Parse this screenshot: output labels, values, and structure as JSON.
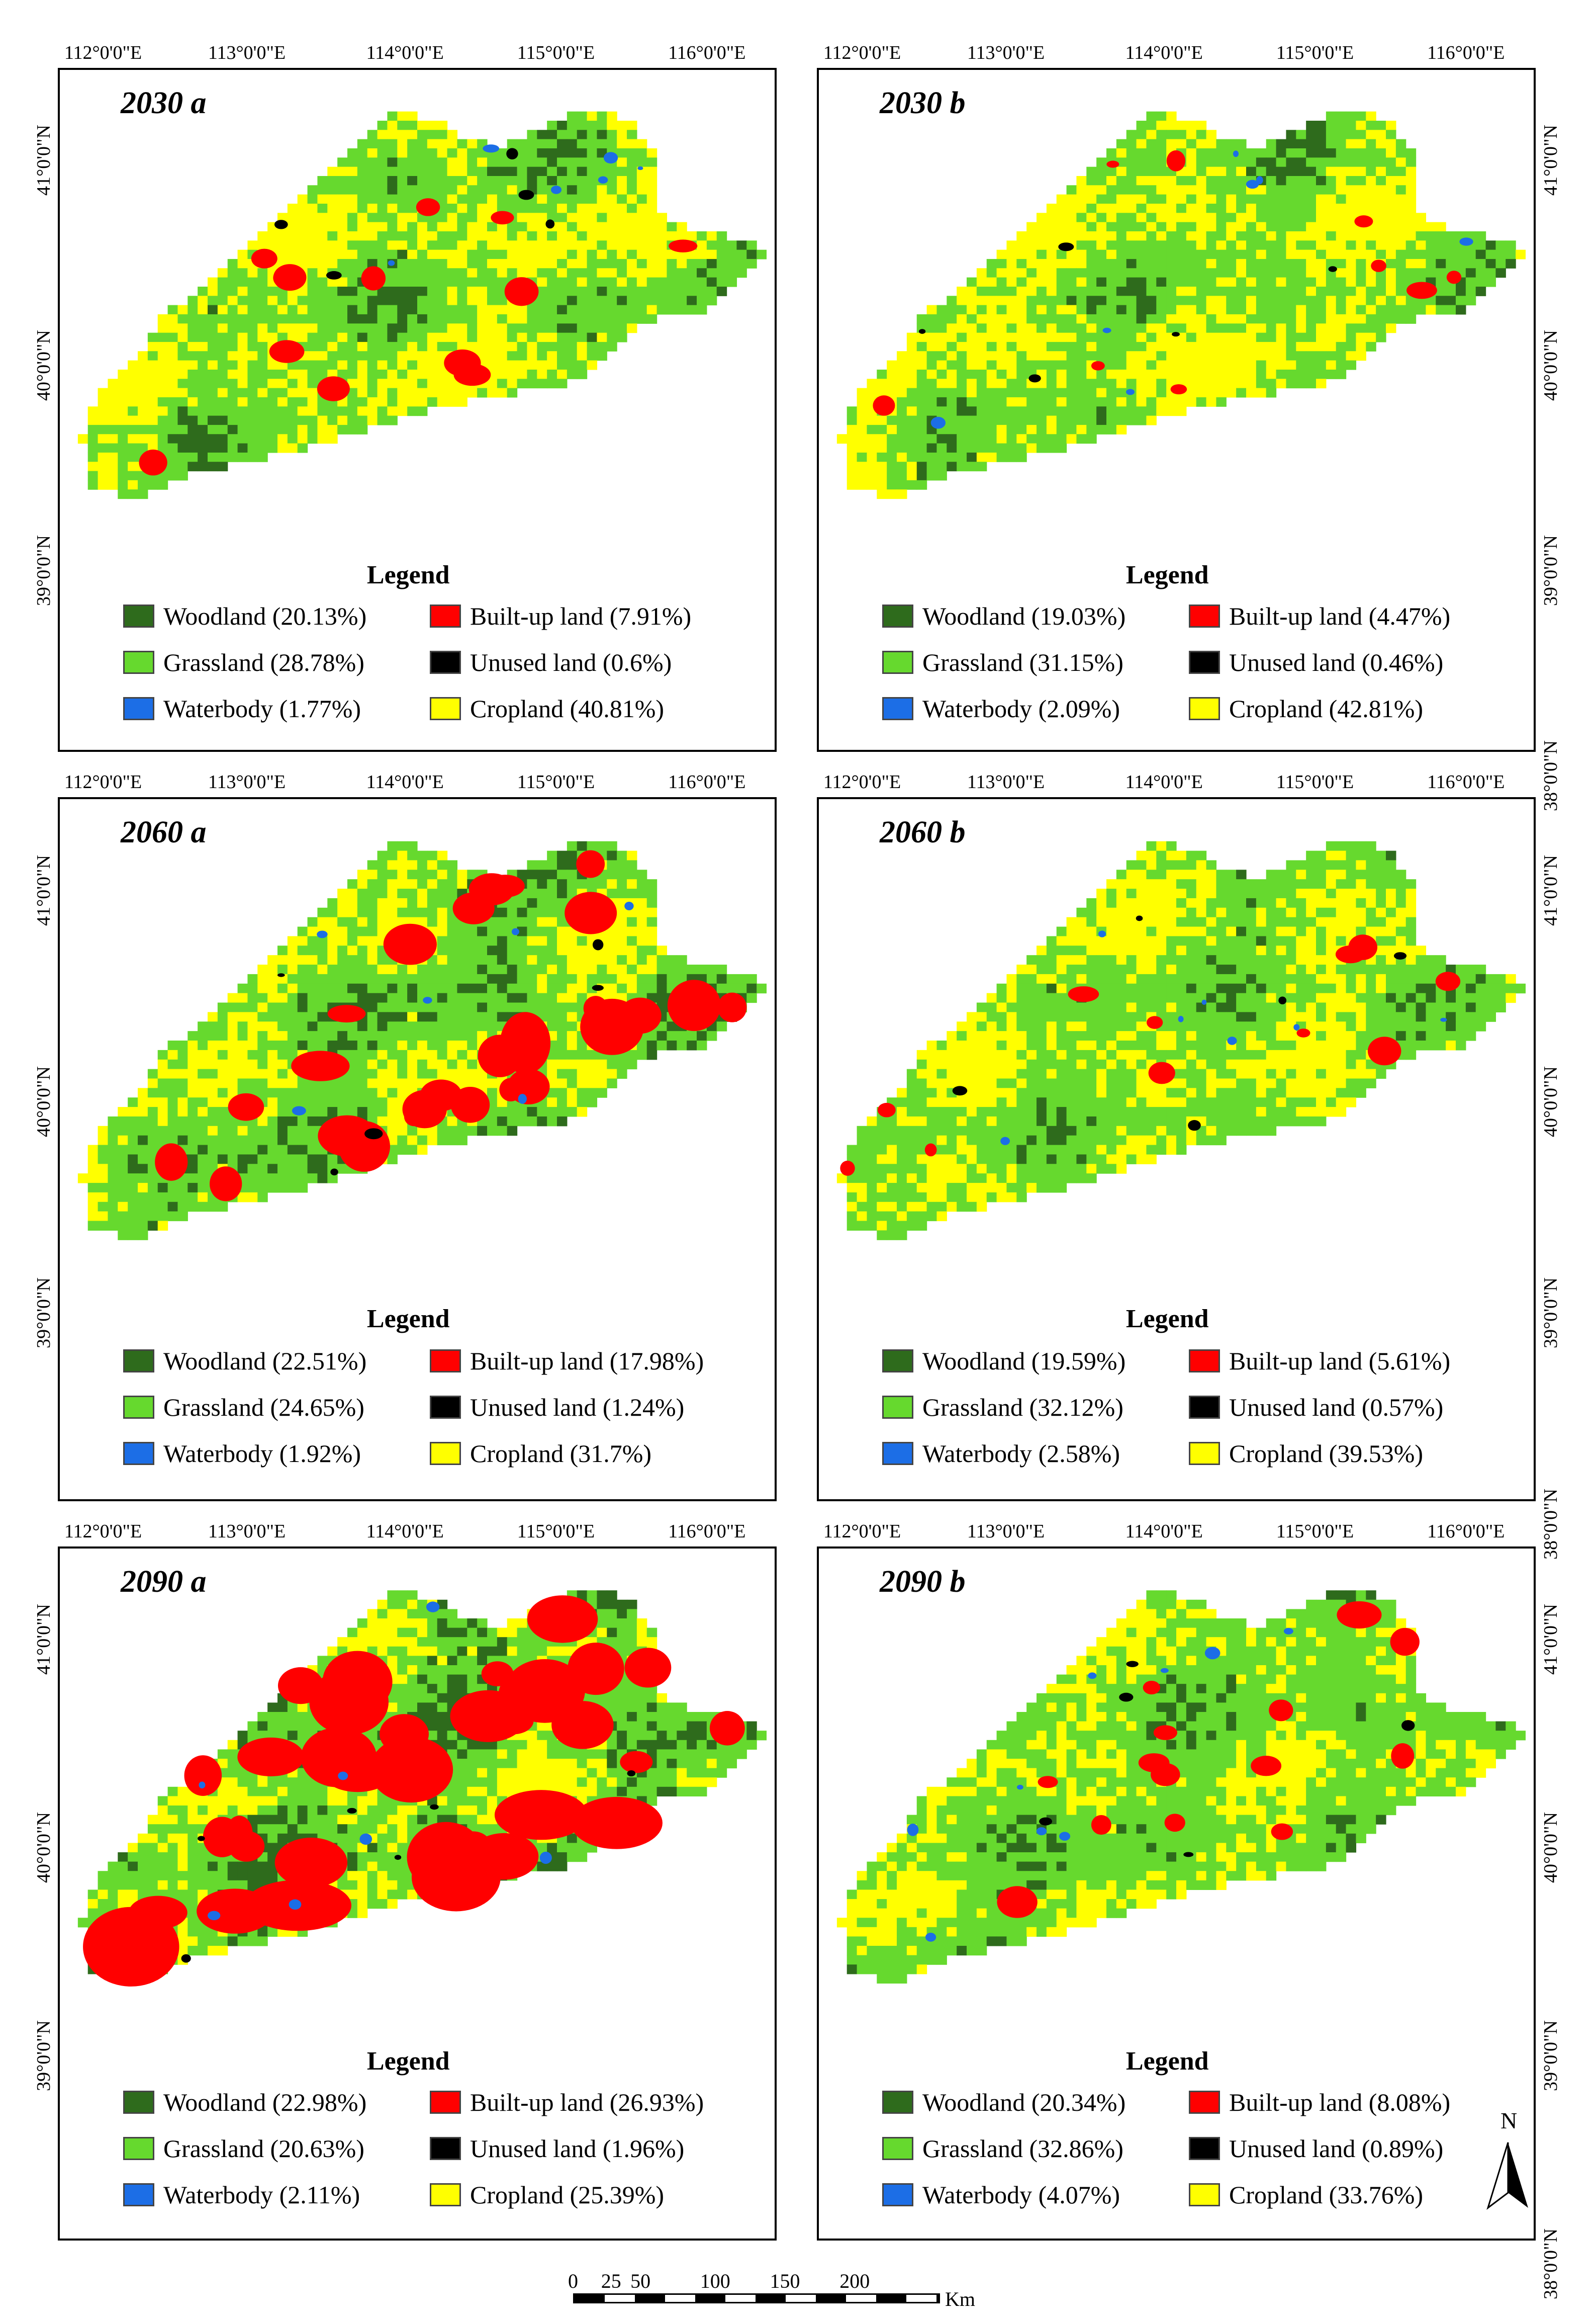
{
  "colors": {
    "woodland": "#2e6b1c",
    "grassland": "#66d92e",
    "waterbody": "#1c6ee6",
    "builtup": "#ff0000",
    "unused": "#000000",
    "cropland": "#ffff00"
  },
  "lon_ticks": [
    "112°0'0\"E",
    "113°0'0\"E",
    "114°0'0\"E",
    "115°0'0\"E",
    "116°0'0\"E"
  ],
  "lat_ticks": [
    "41°0'0\"N",
    "40°0'0\"N",
    "39°0'0\"N",
    "38°0'0\"N"
  ],
  "legend_title": "Legend",
  "panels": [
    {
      "title": "2030 a",
      "woodland": "Woodland (20.13%)",
      "grassland": "Grassland (28.78%)",
      "waterbody": "Waterbody (1.77%)",
      "builtup": "Built-up land (7.91%)",
      "unused": "Unused land (0.6%)",
      "cropland": "Cropland (40.81%)"
    },
    {
      "title": "2030 b",
      "woodland": "Woodland (19.03%)",
      "grassland": "Grassland  (31.15%)",
      "waterbody": "Waterbody (2.09%)",
      "builtup": "Built-up land (4.47%)",
      "unused": "Unused land (0.46%)",
      "cropland": "Cropland (42.81%)"
    },
    {
      "title": "2060 a",
      "woodland": "Woodland (22.51%)",
      "grassland": "Grassland (24.65%)",
      "waterbody": "Waterbody (1.92%)",
      "builtup": "Built-up land (17.98%)",
      "unused": "Unused land (1.24%)",
      "cropland": "Cropland (31.7%)"
    },
    {
      "title": "2060 b",
      "woodland": "Woodland (19.59%)",
      "grassland": "Grassland (32.12%)",
      "waterbody": "Waterbody (2.58%)",
      "builtup": "Built-up land (5.61%)",
      "unused": "Unused land (0.57%)",
      "cropland": "Cropland (39.53%)"
    },
    {
      "title": "2090 a",
      "woodland": "Woodland (22.98%)",
      "grassland": "Grassland (20.63%)",
      "waterbody": "Waterbody (2.11%)",
      "builtup": "Built-up land (26.93%)",
      "unused": "Unused land (1.96%)",
      "cropland": "Cropland (25.39%)"
    },
    {
      "title": "2090 b",
      "woodland": "Woodland (20.34%)",
      "grassland": "Grassland (32.86%)",
      "waterbody": "Waterbody (4.07%)",
      "builtup": "Built-up land (8.08%)",
      "unused": "Unused land (0.89%)",
      "cropland": "Cropland (33.76%)"
    }
  ],
  "scale_bar": {
    "labels": [
      "0",
      "25",
      "50",
      "100",
      "150",
      "200"
    ],
    "unit": "Km"
  },
  "north_label": "N"
}
